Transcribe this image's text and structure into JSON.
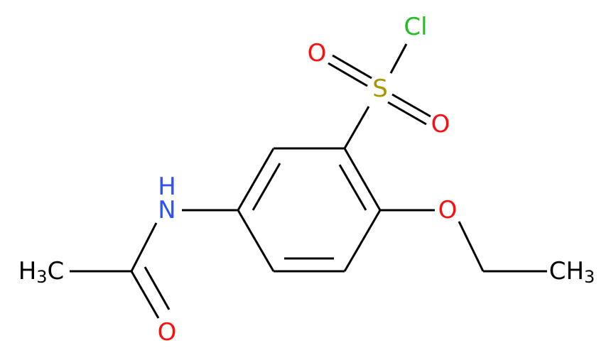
{
  "atoms": [
    {
      "label": "Cl"
    },
    {
      "label": "O"
    },
    {
      "label": "S"
    },
    {
      "label": "O"
    },
    {
      "label": "H"
    },
    {
      "label": "N"
    },
    {
      "label": "O"
    },
    {
      "label": "H",
      "sub": "3",
      "tail": "C"
    },
    {
      "label": "O"
    },
    {
      "label": "CH",
      "sub": "3"
    }
  ]
}
